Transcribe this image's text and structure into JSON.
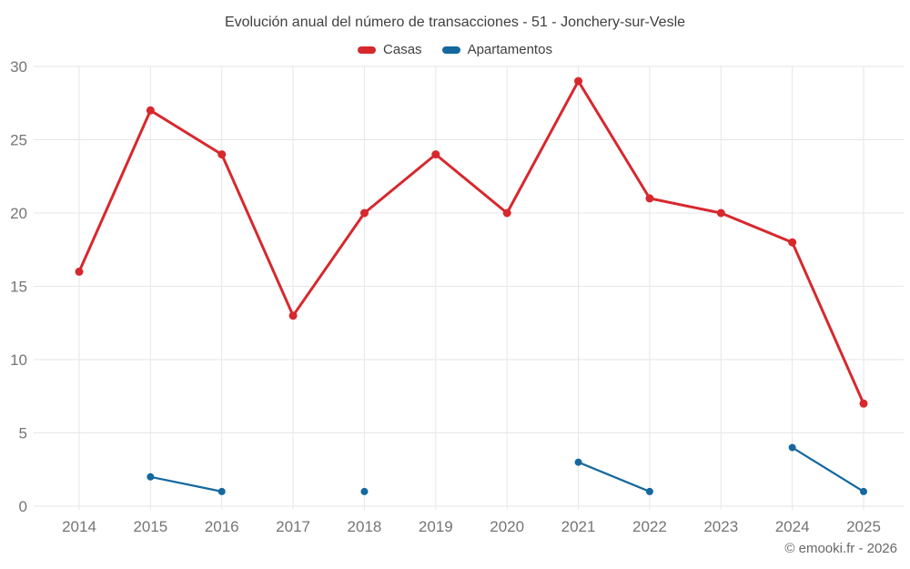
{
  "title": "Evolución anual del número de transacciones - 51 - Jonchery-sur-Vesle",
  "legend": {
    "items": [
      {
        "label": "Casas",
        "color": "#d7282d"
      },
      {
        "label": "Apartamentos",
        "color": "#15689e"
      }
    ]
  },
  "footer": {
    "copyright": "© emooki.fr - 2026"
  },
  "colors": {
    "grid": "#e6e6e6",
    "axis_text": "#757575",
    "title_text": "#3f3f3f"
  },
  "chart_data": {
    "type": "line",
    "title": "Evolución anual del número de transacciones - 51 - Jonchery-sur-Vesle",
    "categories": [
      "2014",
      "2015",
      "2016",
      "2017",
      "2018",
      "2019",
      "2020",
      "2021",
      "2022",
      "2023",
      "2024",
      "2025"
    ],
    "series": [
      {
        "name": "Casas",
        "color": "#d7282d",
        "values": [
          16,
          27,
          24,
          13,
          20,
          24,
          20,
          29,
          21,
          20,
          18,
          7
        ]
      },
      {
        "name": "Apartamentos",
        "color": "#15689e",
        "values": [
          null,
          2,
          1,
          null,
          1,
          null,
          null,
          3,
          1,
          null,
          4,
          1
        ]
      }
    ],
    "y_ticks": [
      0,
      5,
      10,
      15,
      20,
      25,
      30
    ],
    "ylim": [
      0,
      30
    ],
    "xlabel": "",
    "ylabel": "",
    "grid": true,
    "legend_position": "top"
  }
}
